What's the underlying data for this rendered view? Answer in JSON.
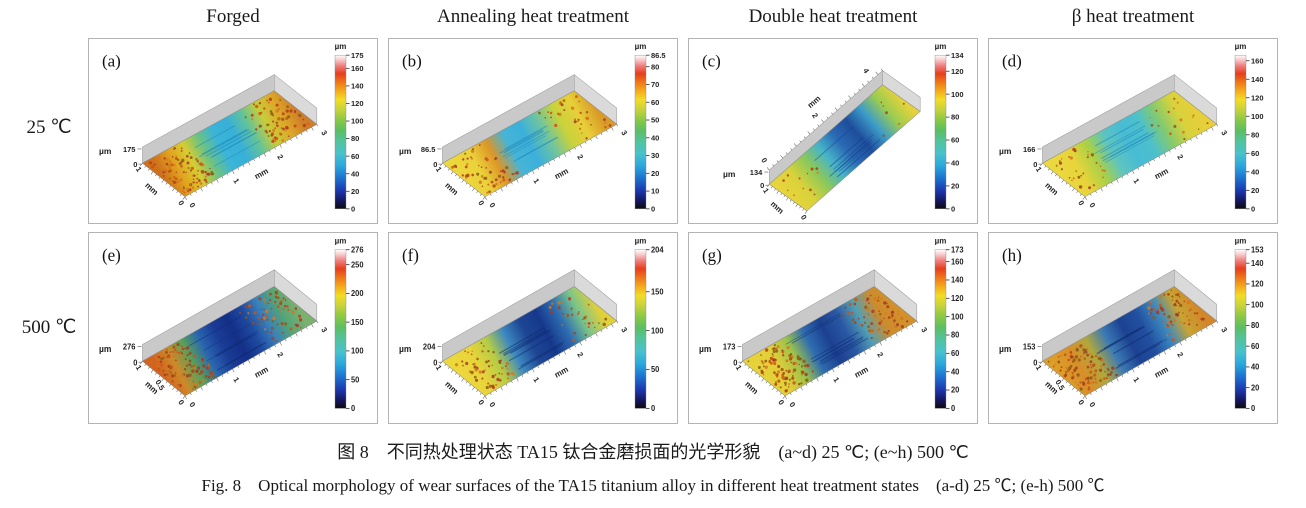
{
  "figure": {
    "column_headers": [
      "Forged",
      "Annealing heat treatment",
      "Double heat treatment",
      "β heat treatment"
    ],
    "row_labels": [
      "25 ℃",
      "500 ℃"
    ],
    "caption_zh": "图 8　不同热处理状态 TA15 钛合金磨损面的光学形貌　(a~d) 25 ℃; (e~h) 500 ℃",
    "caption_en": "Fig. 8　Optical morphology of wear surfaces of the TA15 titanium alloy in different heat treatment states　(a-d) 25 ℃; (e-h) 500 ℃"
  },
  "colors": {
    "panel_border": "#b4b4b4",
    "wall_back": "#c9c9c9",
    "wall_end": "#dadada",
    "colormap": [
      [
        0,
        "#0c0c0c"
      ],
      [
        0.05,
        "#15155c"
      ],
      [
        0.12,
        "#1c39b0"
      ],
      [
        0.2,
        "#1d72cf"
      ],
      [
        0.28,
        "#2aa8dd"
      ],
      [
        0.36,
        "#49c2cb"
      ],
      [
        0.44,
        "#52c39c"
      ],
      [
        0.51,
        "#5cbe62"
      ],
      [
        0.58,
        "#8bc945"
      ],
      [
        0.65,
        "#cad33b"
      ],
      [
        0.71,
        "#f2dc26"
      ],
      [
        0.76,
        "#f5b11d"
      ],
      [
        0.82,
        "#ef7a18"
      ],
      [
        0.88,
        "#e63e1d"
      ],
      [
        0.93,
        "#ef7d7d"
      ],
      [
        0.97,
        "#f9caca"
      ],
      [
        1,
        "#ffffff"
      ]
    ]
  },
  "chart_data": [
    {
      "type": "surface",
      "panel": "(a)",
      "column": "Forged",
      "row": "25 ℃",
      "z_unit": "µm",
      "z_max": 175,
      "colorbar": {
        "unit": "µm",
        "max": 175,
        "ticks": [
          175,
          160,
          140,
          120,
          100,
          80,
          60,
          40,
          20,
          0
        ]
      },
      "x_axis": {
        "label": "mm",
        "ticks": [
          "0",
          "1",
          "2",
          "3"
        ]
      },
      "y_axis": {
        "label": "mm",
        "ticks": [
          "0",
          "1"
        ]
      },
      "z_axis": {
        "label": "µm",
        "ticks": [
          "175",
          "0"
        ]
      },
      "orientation": "x-labels-right",
      "style": {
        "bands": [
          "#cf6f1a",
          "#e0a01e",
          "#d8cc30",
          "#6ec380",
          "#3ab4d8",
          "#38b0d8",
          "#62c39a",
          "#c8cd3a",
          "#dca828",
          "#cf7d28"
        ],
        "stripe": "#1f86b8",
        "speckle": "heavy"
      }
    },
    {
      "type": "surface",
      "panel": "(b)",
      "column": "Annealing heat treatment",
      "row": "25 ℃",
      "z_unit": "µm",
      "z_max": 86.5,
      "colorbar": {
        "unit": "µm",
        "max": 86.5,
        "ticks": [
          86.5,
          80,
          70,
          60,
          50,
          40,
          30,
          20,
          10,
          0
        ]
      },
      "x_axis": {
        "label": "mm",
        "ticks": [
          "0",
          "1",
          "2",
          "3"
        ]
      },
      "y_axis": {
        "label": "mm",
        "ticks": [
          "0",
          "1"
        ]
      },
      "z_axis": {
        "label": "µm",
        "ticks": [
          "86.5",
          "0"
        ]
      },
      "orientation": "x-labels-right",
      "style": {
        "bands": [
          "#ecd73c",
          "#ead23a",
          "#dc9628",
          "#46b4d6",
          "#3cb0da",
          "#6ec4a0",
          "#c8d23c",
          "#e8cf38",
          "#d99a28"
        ],
        "stripe": "#1f86b8",
        "speckle": "medium"
      }
    },
    {
      "type": "surface",
      "panel": "(c)",
      "column": "Double heat treatment",
      "row": "25 ℃",
      "z_unit": "µm",
      "z_max": 134,
      "colorbar": {
        "unit": "µm",
        "max": 134,
        "ticks": [
          134,
          120,
          100,
          80,
          60,
          40,
          20,
          0
        ]
      },
      "x_axis": {
        "label": "mm",
        "ticks": [
          "0",
          "2",
          "4"
        ]
      },
      "y_axis": {
        "label": "mm",
        "ticks": [
          "0",
          "1"
        ]
      },
      "z_axis": {
        "label": "µm",
        "ticks": [
          "134",
          "0"
        ]
      },
      "orientation": "x-labels-left",
      "style": {
        "bands": [
          "#e8d43c",
          "#d8d23a",
          "#8cc85a",
          "#46b4c8",
          "#2a6ab4",
          "#1e4e9c",
          "#3c9cc8",
          "#9ccc50",
          "#e4d23c"
        ],
        "stripe": "#123c8c",
        "speckle": "sparse"
      }
    },
    {
      "type": "surface",
      "panel": "(d)",
      "column": "β heat treatment",
      "row": "25 ℃",
      "z_unit": "µm",
      "z_max": 166,
      "colorbar": {
        "unit": "µm",
        "max": 166,
        "ticks": [
          160,
          140,
          120,
          100,
          80,
          60,
          40,
          20,
          0
        ]
      },
      "x_axis": {
        "label": "mm",
        "ticks": [
          "0",
          "1",
          "2",
          "3"
        ]
      },
      "y_axis": {
        "label": "mm",
        "ticks": [
          "0",
          "1"
        ]
      },
      "z_axis": {
        "label": "µm",
        "ticks": [
          "166",
          "0"
        ]
      },
      "orientation": "x-labels-right",
      "style": {
        "bands": [
          "#ead83e",
          "#e6d43a",
          "#aad048",
          "#5ec4c0",
          "#48bcd4",
          "#4cc0cc",
          "#84ca6e",
          "#d8d23c",
          "#e6cf3a"
        ],
        "stripe": "#1f86b8",
        "speckle": "light"
      }
    },
    {
      "type": "surface",
      "panel": "(e)",
      "column": "Forged",
      "row": "500 ℃",
      "z_unit": "µm",
      "z_max": 276,
      "colorbar": {
        "unit": "µm",
        "max": 276,
        "ticks": [
          276,
          250,
          200,
          150,
          100,
          50,
          0
        ]
      },
      "x_axis": {
        "label": "mm",
        "ticks": [
          "0",
          "1",
          "2",
          "3"
        ]
      },
      "y_axis": {
        "label": "mm",
        "ticks": [
          "0",
          "0.5",
          "1"
        ]
      },
      "z_axis": {
        "label": "µm",
        "ticks": [
          "276",
          "0"
        ]
      },
      "orientation": "x-labels-right",
      "style": {
        "bands": [
          "#d2641e",
          "#cc8a2a",
          "#58a05a",
          "#2a64b0",
          "#1a3c96",
          "#142f88",
          "#1e4aa0",
          "#3a80bc",
          "#54a477",
          "#7ab070"
        ],
        "stripe": "#0d2a6e",
        "speckle": "heavy"
      }
    },
    {
      "type": "surface",
      "panel": "(f)",
      "column": "Annealing heat treatment",
      "row": "500 ℃",
      "z_unit": "µm",
      "z_max": 204,
      "colorbar": {
        "unit": "µm",
        "max": 204,
        "ticks": [
          204,
          150,
          100,
          50,
          0
        ]
      },
      "x_axis": {
        "label": "mm",
        "ticks": [
          "0",
          "1",
          "2",
          "3"
        ]
      },
      "y_axis": {
        "label": "mm",
        "ticks": [
          "0",
          "1"
        ]
      },
      "z_axis": {
        "label": "µm",
        "ticks": [
          "204",
          "0"
        ]
      },
      "orientation": "x-labels-right",
      "style": {
        "bands": [
          "#ecd73c",
          "#e8d43a",
          "#b4cc46",
          "#3c88c0",
          "#1e4694",
          "#16388c",
          "#2e6cb0",
          "#78c48c",
          "#e0d03a"
        ],
        "stripe": "#0d2a6e",
        "speckle": "medium"
      }
    },
    {
      "type": "surface",
      "panel": "(g)",
      "column": "Double heat treatment",
      "row": "500 ℃",
      "z_unit": "µm",
      "z_max": 173,
      "colorbar": {
        "unit": "µm",
        "max": 173,
        "ticks": [
          173,
          160,
          140,
          120,
          100,
          80,
          60,
          40,
          20,
          0
        ]
      },
      "x_axis": {
        "label": "mm",
        "ticks": [
          "0",
          "1",
          "2",
          "3"
        ]
      },
      "y_axis": {
        "label": "mm",
        "ticks": [
          "0",
          "1"
        ]
      },
      "z_axis": {
        "label": "µm",
        "ticks": [
          "173",
          "0"
        ]
      },
      "orientation": "x-labels-right",
      "style": {
        "bands": [
          "#e6d23a",
          "#e2ce38",
          "#9cc34a",
          "#2e6cb0",
          "#1c4090",
          "#2a58a4",
          "#52a0b4",
          "#cc8c2e",
          "#d2912a"
        ],
        "stripe": "#0d2a6e",
        "speckle": "heavy"
      }
    },
    {
      "type": "surface",
      "panel": "(h)",
      "column": "β heat treatment",
      "row": "500 ℃",
      "z_unit": "µm",
      "z_max": 153,
      "colorbar": {
        "unit": "µm",
        "max": 153,
        "ticks": [
          153,
          140,
          120,
          100,
          80,
          60,
          40,
          20,
          0
        ]
      },
      "x_axis": {
        "label": "mm",
        "ticks": [
          "0",
          "1",
          "2",
          "3"
        ]
      },
      "y_axis": {
        "label": "mm",
        "ticks": [
          "0",
          "0.5",
          "1"
        ]
      },
      "z_axis": {
        "label": "µm",
        "ticks": [
          "153",
          "0"
        ]
      },
      "orientation": "x-labels-right",
      "style": {
        "bands": [
          "#dd9e28",
          "#d88e2a",
          "#b0a83c",
          "#3c7ab4",
          "#1c4293",
          "#2250a0",
          "#3c88c0",
          "#c8a433",
          "#d2882a"
        ],
        "stripe": "#0d2a6e",
        "speckle": "heavy"
      }
    }
  ]
}
